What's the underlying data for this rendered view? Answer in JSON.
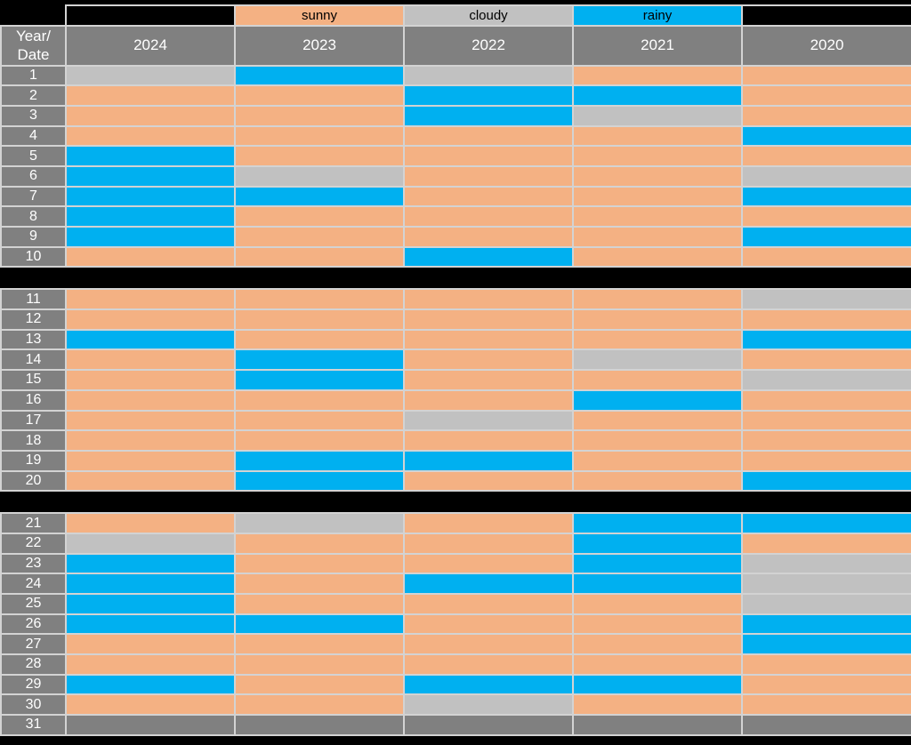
{
  "page": {
    "background": "#000000",
    "grid_line_color": "#D3D3D3"
  },
  "legend": {
    "items": [
      {
        "label": "",
        "category": "blank"
      },
      {
        "label": "sunny",
        "category": "sunny"
      },
      {
        "label": "cloudy",
        "category": "cloudy"
      },
      {
        "label": "rainy",
        "category": "rainy"
      },
      {
        "label": "",
        "category": "blank"
      }
    ]
  },
  "header": {
    "corner_line1": "Year/",
    "corner_line2": "Date",
    "header_bg": "#808080",
    "header_text_color": "#FFFFFF"
  },
  "colors": {
    "sunny": "#F4B183",
    "cloudy": "#C1C1C1",
    "rainy": "#00B0F0",
    "none": "#808080"
  },
  "chart_data": {
    "type": "heatmap",
    "title": "",
    "xlabel": "",
    "ylabel": "",
    "legend_entries": [
      "sunny",
      "cloudy",
      "rainy"
    ],
    "legend_position": "top",
    "columns": [
      "2024",
      "2023",
      "2022",
      "2021",
      "2020"
    ],
    "row_label_header": "Year/Date",
    "category_colors": {
      "sunny": "#F4B183",
      "cloudy": "#C1C1C1",
      "rainy": "#00B0F0",
      "none": "#808080"
    },
    "blocks": [
      {
        "rows": [
          {
            "date": "1",
            "values": [
              "cloudy",
              "rainy",
              "cloudy",
              "sunny",
              "sunny"
            ]
          },
          {
            "date": "2",
            "values": [
              "sunny",
              "sunny",
              "rainy",
              "rainy",
              "sunny"
            ]
          },
          {
            "date": "3",
            "values": [
              "sunny",
              "sunny",
              "rainy",
              "cloudy",
              "sunny"
            ]
          },
          {
            "date": "4",
            "values": [
              "sunny",
              "sunny",
              "sunny",
              "sunny",
              "rainy"
            ]
          },
          {
            "date": "5",
            "values": [
              "rainy",
              "sunny",
              "sunny",
              "sunny",
              "sunny"
            ]
          },
          {
            "date": "6",
            "values": [
              "rainy",
              "cloudy",
              "sunny",
              "sunny",
              "cloudy"
            ]
          },
          {
            "date": "7",
            "values": [
              "rainy",
              "rainy",
              "sunny",
              "sunny",
              "rainy"
            ]
          },
          {
            "date": "8",
            "values": [
              "rainy",
              "sunny",
              "sunny",
              "sunny",
              "sunny"
            ]
          },
          {
            "date": "9",
            "values": [
              "rainy",
              "sunny",
              "sunny",
              "sunny",
              "rainy"
            ]
          },
          {
            "date": "10",
            "values": [
              "sunny",
              "sunny",
              "rainy",
              "sunny",
              "sunny"
            ]
          }
        ]
      },
      {
        "rows": [
          {
            "date": "11",
            "values": [
              "sunny",
              "sunny",
              "sunny",
              "sunny",
              "cloudy"
            ]
          },
          {
            "date": "12",
            "values": [
              "sunny",
              "sunny",
              "sunny",
              "sunny",
              "sunny"
            ]
          },
          {
            "date": "13",
            "values": [
              "rainy",
              "sunny",
              "sunny",
              "sunny",
              "rainy"
            ]
          },
          {
            "date": "14",
            "values": [
              "sunny",
              "rainy",
              "sunny",
              "cloudy",
              "sunny"
            ]
          },
          {
            "date": "15",
            "values": [
              "sunny",
              "rainy",
              "sunny",
              "sunny",
              "cloudy"
            ]
          },
          {
            "date": "16",
            "values": [
              "sunny",
              "sunny",
              "sunny",
              "rainy",
              "sunny"
            ]
          },
          {
            "date": "17",
            "values": [
              "sunny",
              "sunny",
              "cloudy",
              "sunny",
              "sunny"
            ]
          },
          {
            "date": "18",
            "values": [
              "sunny",
              "sunny",
              "sunny",
              "sunny",
              "sunny"
            ]
          },
          {
            "date": "19",
            "values": [
              "sunny",
              "rainy",
              "rainy",
              "sunny",
              "sunny"
            ]
          },
          {
            "date": "20",
            "values": [
              "sunny",
              "rainy",
              "sunny",
              "sunny",
              "rainy"
            ]
          }
        ]
      },
      {
        "rows": [
          {
            "date": "21",
            "values": [
              "sunny",
              "cloudy",
              "sunny",
              "rainy",
              "rainy"
            ]
          },
          {
            "date": "22",
            "values": [
              "cloudy",
              "sunny",
              "sunny",
              "rainy",
              "sunny"
            ]
          },
          {
            "date": "23",
            "values": [
              "rainy",
              "sunny",
              "sunny",
              "rainy",
              "cloudy"
            ]
          },
          {
            "date": "24",
            "values": [
              "rainy",
              "sunny",
              "rainy",
              "rainy",
              "cloudy"
            ]
          },
          {
            "date": "25",
            "values": [
              "rainy",
              "sunny",
              "sunny",
              "sunny",
              "cloudy"
            ]
          },
          {
            "date": "26",
            "values": [
              "rainy",
              "rainy",
              "sunny",
              "sunny",
              "rainy"
            ]
          },
          {
            "date": "27",
            "values": [
              "sunny",
              "sunny",
              "sunny",
              "sunny",
              "rainy"
            ]
          },
          {
            "date": "28",
            "values": [
              "sunny",
              "sunny",
              "sunny",
              "sunny",
              "sunny"
            ]
          },
          {
            "date": "29",
            "values": [
              "rainy",
              "sunny",
              "rainy",
              "rainy",
              "sunny"
            ]
          },
          {
            "date": "30",
            "values": [
              "sunny",
              "sunny",
              "cloudy",
              "sunny",
              "sunny"
            ]
          },
          {
            "date": "31",
            "values": [
              "none",
              "none",
              "none",
              "none",
              "none"
            ]
          }
        ]
      }
    ]
  }
}
